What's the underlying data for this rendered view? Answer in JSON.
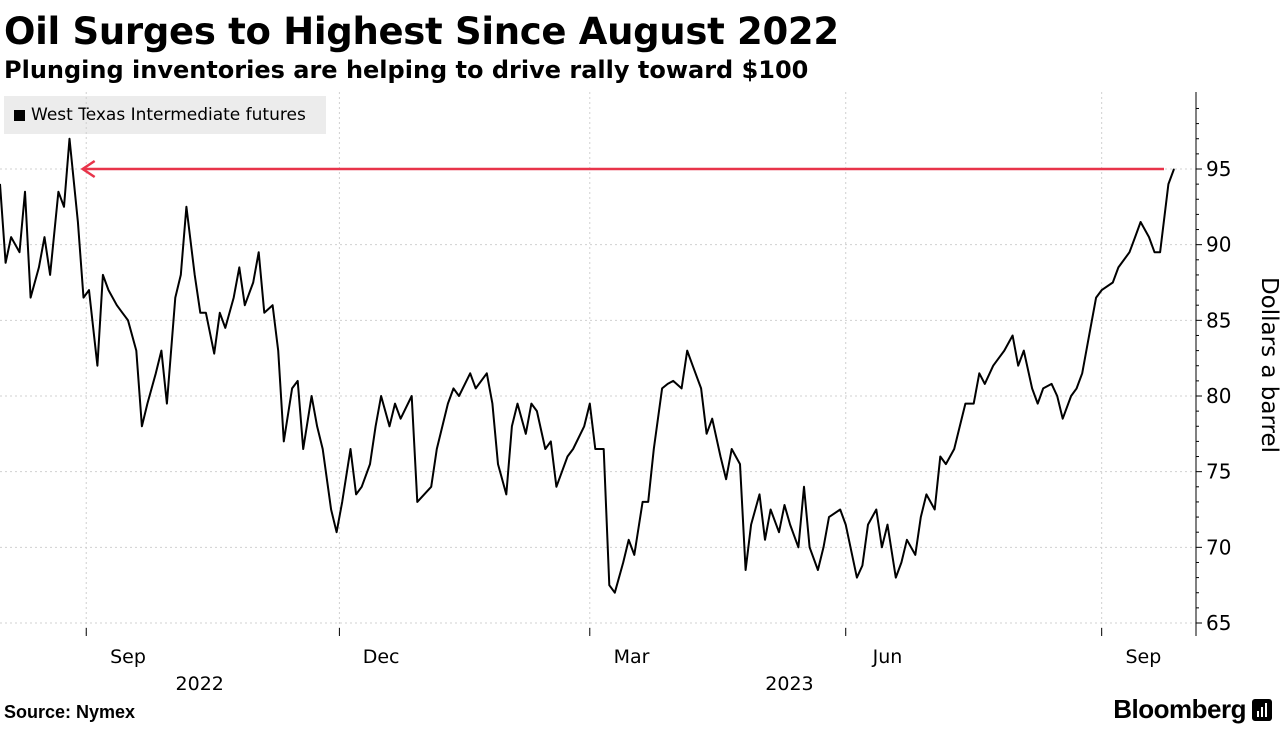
{
  "header": {
    "title": "Oil Surges to Highest Since August 2022",
    "subtitle": "Plunging inventories are helping to drive rally toward $100"
  },
  "footer": {
    "source": "Source: Nymex",
    "brand": "Bloomberg"
  },
  "colors": {
    "line": "#000000",
    "annotation_arrow": "#e8344a",
    "grid": "#d0d0d0",
    "legend_bg": "#ececec"
  },
  "chart_data": {
    "type": "line",
    "legend": {
      "position": "top-left",
      "entries": [
        "West Texas Intermediate futures"
      ]
    },
    "ylabel": "Dollars a barrel",
    "y_axis_side": "right",
    "ylim": [
      64,
      99
    ],
    "yticks": [
      65,
      70,
      75,
      80,
      85,
      90,
      95
    ],
    "grid": true,
    "xlim": [
      "2022-08-01",
      "2023-09-27"
    ],
    "x_month_ticks": [
      {
        "label": "Sep",
        "date": "2022-09-01"
      },
      {
        "label": "Dec",
        "date": "2022-12-01"
      },
      {
        "label": "Mar",
        "date": "2023-03-01"
      },
      {
        "label": "Jun",
        "date": "2023-06-01"
      },
      {
        "label": "Sep",
        "date": "2023-09-01"
      }
    ],
    "x_year_labels": [
      {
        "label": "2022",
        "date": "2022-10-01"
      },
      {
        "label": "2023",
        "date": "2023-05-01"
      }
    ],
    "annotation": {
      "type": "arrow",
      "y": 95.0,
      "from_date": "2023-09-27",
      "to_date": "2022-08-30"
    },
    "series": [
      {
        "name": "West Texas Intermediate futures",
        "x": [
          "2022-08-01",
          "2022-08-03",
          "2022-08-05",
          "2022-08-08",
          "2022-08-10",
          "2022-08-12",
          "2022-08-15",
          "2022-08-17",
          "2022-08-19",
          "2022-08-22",
          "2022-08-24",
          "2022-08-26",
          "2022-08-29",
          "2022-08-31",
          "2022-09-02",
          "2022-09-05",
          "2022-09-07",
          "2022-09-09",
          "2022-09-12",
          "2022-09-14",
          "2022-09-16",
          "2022-09-19",
          "2022-09-21",
          "2022-09-23",
          "2022-09-26",
          "2022-09-28",
          "2022-09-30",
          "2022-10-03",
          "2022-10-05",
          "2022-10-07",
          "2022-10-10",
          "2022-10-12",
          "2022-10-14",
          "2022-10-17",
          "2022-10-19",
          "2022-10-21",
          "2022-10-24",
          "2022-10-26",
          "2022-10-28",
          "2022-10-31",
          "2022-11-02",
          "2022-11-04",
          "2022-11-07",
          "2022-11-09",
          "2022-11-11",
          "2022-11-14",
          "2022-11-16",
          "2022-11-18",
          "2022-11-21",
          "2022-11-23",
          "2022-11-25",
          "2022-11-28",
          "2022-11-30",
          "2022-12-02",
          "2022-12-05",
          "2022-12-07",
          "2022-12-09",
          "2022-12-12",
          "2022-12-14",
          "2022-12-16",
          "2022-12-19",
          "2022-12-21",
          "2022-12-23",
          "2022-12-27",
          "2022-12-29",
          "2023-01-03",
          "2023-01-05",
          "2023-01-09",
          "2023-01-11",
          "2023-01-13",
          "2023-01-17",
          "2023-01-19",
          "2023-01-23",
          "2023-01-25",
          "2023-01-27",
          "2023-01-30",
          "2023-02-01",
          "2023-02-03",
          "2023-02-06",
          "2023-02-08",
          "2023-02-10",
          "2023-02-13",
          "2023-02-15",
          "2023-02-17",
          "2023-02-21",
          "2023-02-23",
          "2023-02-27",
          "2023-03-01",
          "2023-03-03",
          "2023-03-06",
          "2023-03-08",
          "2023-03-10",
          "2023-03-13",
          "2023-03-15",
          "2023-03-17",
          "2023-03-20",
          "2023-03-22",
          "2023-03-24",
          "2023-03-27",
          "2023-03-29",
          "2023-03-31",
          "2023-04-03",
          "2023-04-05",
          "2023-04-07",
          "2023-04-10",
          "2023-04-12",
          "2023-04-14",
          "2023-04-17",
          "2023-04-19",
          "2023-04-21",
          "2023-04-24",
          "2023-04-26",
          "2023-04-28",
          "2023-05-01",
          "2023-05-03",
          "2023-05-05",
          "2023-05-08",
          "2023-05-10",
          "2023-05-12",
          "2023-05-15",
          "2023-05-17",
          "2023-05-19",
          "2023-05-22",
          "2023-05-24",
          "2023-05-26",
          "2023-05-30",
          "2023-06-01",
          "2023-06-05",
          "2023-06-07",
          "2023-06-09",
          "2023-06-12",
          "2023-06-14",
          "2023-06-16",
          "2023-06-19",
          "2023-06-21",
          "2023-06-23",
          "2023-06-26",
          "2023-06-28",
          "2023-06-30",
          "2023-07-03",
          "2023-07-05",
          "2023-07-07",
          "2023-07-10",
          "2023-07-12",
          "2023-07-14",
          "2023-07-17",
          "2023-07-19",
          "2023-07-21",
          "2023-07-24",
          "2023-07-26",
          "2023-07-28",
          "2023-07-31",
          "2023-08-02",
          "2023-08-04",
          "2023-08-07",
          "2023-08-09",
          "2023-08-11",
          "2023-08-14",
          "2023-08-16",
          "2023-08-18",
          "2023-08-21",
          "2023-08-23",
          "2023-08-25",
          "2023-08-28",
          "2023-08-30",
          "2023-09-01",
          "2023-09-05",
          "2023-09-07",
          "2023-09-11",
          "2023-09-13",
          "2023-09-15",
          "2023-09-18",
          "2023-09-20",
          "2023-09-22",
          "2023-09-25",
          "2023-09-27"
        ],
        "values": [
          94.0,
          88.8,
          90.5,
          89.5,
          93.5,
          86.5,
          88.5,
          90.5,
          88.0,
          93.5,
          92.5,
          97.0,
          91.5,
          86.5,
          87.0,
          82.0,
          88.0,
          87.0,
          86.0,
          85.5,
          85.0,
          83.0,
          78.0,
          79.5,
          81.5,
          83.0,
          79.5,
          86.5,
          88.0,
          92.5,
          88.0,
          85.5,
          85.5,
          82.8,
          85.5,
          84.5,
          86.5,
          88.5,
          86.0,
          87.5,
          89.5,
          85.5,
          86.0,
          83.0,
          77.0,
          80.5,
          81.0,
          76.5,
          80.0,
          78.0,
          76.5,
          72.5,
          71.0,
          73.0,
          76.5,
          73.5,
          74.0,
          75.5,
          78.0,
          80.0,
          78.0,
          79.5,
          78.5,
          80.0,
          73.0,
          74.0,
          76.5,
          79.5,
          80.5,
          80.0,
          81.5,
          80.5,
          81.5,
          79.5,
          75.5,
          73.5,
          78.0,
          79.5,
          77.5,
          79.5,
          79.0,
          76.5,
          77.0,
          74.0,
          76.0,
          76.5,
          78.0,
          79.5,
          76.5,
          76.5,
          67.5,
          67.0,
          69.0,
          70.5,
          69.5,
          73.0,
          73.0,
          76.5,
          80.5,
          80.8,
          81.0,
          80.5,
          83.0,
          82.0,
          80.5,
          77.5,
          78.5,
          76.0,
          74.5,
          76.5,
          75.5,
          68.5,
          71.5,
          73.5,
          70.5,
          72.5,
          71.0,
          72.8,
          71.5,
          70.0,
          74.0,
          70.0,
          68.5,
          70.0,
          72.0,
          72.5,
          71.5,
          68.0,
          68.8,
          71.5,
          72.5,
          70.0,
          71.5,
          68.0,
          69.0,
          70.5,
          69.5,
          72.0,
          73.5,
          72.5,
          76.0,
          75.5,
          76.5,
          78.0,
          79.5,
          79.5,
          81.5,
          80.8,
          82.0,
          82.5,
          83.0,
          84.0,
          82.0,
          83.0,
          80.5,
          79.5,
          80.5,
          80.8,
          80.0,
          78.5,
          80.0,
          80.5,
          81.5,
          84.5,
          86.5,
          87.0,
          87.5,
          88.5,
          89.5,
          90.5,
          91.5,
          90.5,
          89.5,
          89.5,
          94.0,
          95.0
        ]
      }
    ]
  }
}
